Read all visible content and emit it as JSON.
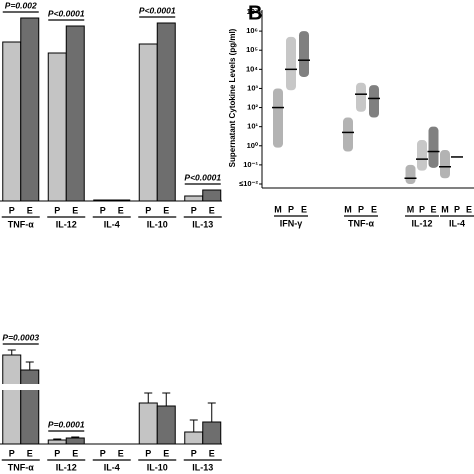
{
  "chart_data": [
    {
      "type": "bar",
      "categories": [
        "TNF-α",
        "IL-12",
        "IL-4",
        "IL-10",
        "IL-13"
      ],
      "series": [
        {
          "name": "P",
          "color": "#c4c4c4",
          "values": [
            159,
            148,
            1,
            157,
            5
          ]
        },
        {
          "name": "E",
          "color": "#6e6e6e",
          "values": [
            183,
            175,
            1,
            178,
            11
          ]
        }
      ],
      "ylim": [
        0,
        200
      ],
      "annotations": [
        {
          "category": "TNF-α",
          "text": "P=0.002"
        },
        {
          "category": "IL-12",
          "text": "P<0.0001"
        },
        {
          "category": "IL-10",
          "text": "P<0.0001"
        },
        {
          "category": "IL-13",
          "text": "P<0.0001"
        }
      ]
    },
    {
      "type": "dot",
      "panel_label": "B",
      "y_label": "Supernatant Cytokine Levels (pg/ml)",
      "log_scale": true,
      "categories": [
        "IFN-γ",
        "TNF-α",
        "IL-12",
        "IL-4"
      ],
      "series": [
        {
          "name": "M",
          "color": "#9a9a9a",
          "values": [
            100,
            5,
            0.02,
            0.08
          ],
          "spread": [
            [
              0.8,
              1000
            ],
            [
              0.5,
              30
            ],
            [
              0.01,
              0.1
            ],
            [
              0.02,
              0.6
            ]
          ]
        },
        {
          "name": "P",
          "color": "#b4b4b4",
          "values": [
            10000,
            500,
            0.2,
            0.26
          ],
          "spread": [
            [
              800,
              500000
            ],
            [
              60,
              2000
            ],
            [
              0.05,
              2
            ],
            null
          ]
        },
        {
          "name": "E",
          "color": "#555555",
          "values": [
            30000,
            300,
            0.5,
            null
          ],
          "spread": [
            [
              4000,
              1000000
            ],
            [
              30,
              1500
            ],
            [
              0.07,
              10
            ],
            null
          ]
        }
      ],
      "ylim": [
        0.01,
        10000000
      ],
      "yticks": [
        {
          "value": 10000000,
          "label": "10⁷"
        },
        {
          "value": 1000000,
          "label": "10⁶"
        },
        {
          "value": 100000,
          "label": "10⁵"
        },
        {
          "value": 10000,
          "label": "10⁴"
        },
        {
          "value": 1000,
          "label": "10³"
        },
        {
          "value": 100,
          "label": "10²"
        },
        {
          "value": 10,
          "label": "10¹"
        },
        {
          "value": 1,
          "label": "10⁰"
        },
        {
          "value": 0.1,
          "label": "10⁻¹"
        },
        {
          "value": 0.01,
          "label": "≤10⁻²"
        }
      ]
    },
    {
      "type": "bar",
      "categories": [
        "TNF-α",
        "IL-12",
        "IL-4",
        "IL-10",
        "IL-13"
      ],
      "series": [
        {
          "name": "P",
          "color": "#c4c4c4",
          "values": [
            89,
            4,
            0,
            41,
            12
          ],
          "errors": [
            5,
            1,
            0,
            10,
            12
          ]
        },
        {
          "name": "E",
          "color": "#6e6e6e",
          "values": [
            74,
            6,
            0,
            38,
            22
          ],
          "errors": [
            8,
            1,
            0,
            13,
            19
          ]
        }
      ],
      "ylim": [
        0,
        95
      ],
      "annotations": [
        {
          "category": "TNF-α",
          "text": "P=0.0003"
        },
        {
          "category": "IL-12",
          "text": "P=0.0001"
        }
      ]
    }
  ]
}
